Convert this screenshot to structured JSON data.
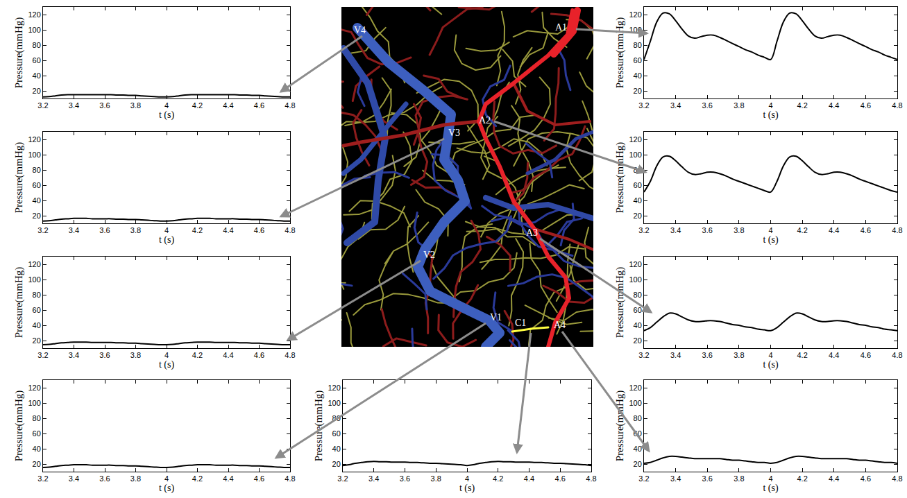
{
  "diagram": {
    "labels": [
      "V4",
      "V3",
      "V2",
      "V1",
      "C1",
      "A1",
      "A2",
      "A3",
      "A4"
    ]
  },
  "chart_data": [
    {
      "type": "line",
      "x_label": "t (s)",
      "y_label": "Pressure(mmHg)",
      "xlim": [
        3.2,
        4.8
      ],
      "ylim": [
        10,
        130
      ],
      "xticks": [
        3.2,
        3.4,
        3.6,
        3.8,
        4,
        4.2,
        4.4,
        4.6,
        4.8
      ],
      "yticks": [
        20,
        40,
        60,
        80,
        100,
        120
      ],
      "grid": false,
      "x": [
        3.2,
        3.24,
        3.28,
        3.32,
        3.36,
        3.4,
        3.44,
        3.48,
        3.52,
        3.56,
        3.6,
        3.64,
        3.68,
        3.72,
        3.76,
        3.8,
        3.84,
        3.88,
        3.92,
        3.96,
        4,
        4.04,
        4.08,
        4.12,
        4.16,
        4.2,
        4.24,
        4.28,
        4.32,
        4.36,
        4.4,
        4.44,
        4.48,
        4.52,
        4.56,
        4.6,
        4.64,
        4.68,
        4.72,
        4.76,
        4.8
      ],
      "series": [
        {
          "color": "#000000",
          "values": [
            12,
            12.5,
            13.5,
            14.5,
            15,
            15,
            15,
            15,
            15,
            15,
            15,
            15,
            14.5,
            14.5,
            14,
            14,
            13.5,
            13,
            12.5,
            12,
            12,
            12.5,
            13.5,
            14.5,
            15,
            15,
            15,
            15,
            15,
            15,
            15,
            15,
            14.5,
            14.5,
            14,
            14,
            13.5,
            13,
            12.5,
            12,
            12
          ]
        }
      ]
    },
    {
      "type": "line",
      "x_label": "t (s)",
      "y_label": "Pressure(mmHg)",
      "xlim": [
        3.2,
        4.8
      ],
      "ylim": [
        10,
        130
      ],
      "xticks": [
        3.2,
        3.4,
        3.6,
        3.8,
        4,
        4.2,
        4.4,
        4.6,
        4.8
      ],
      "yticks": [
        20,
        40,
        60,
        80,
        100,
        120
      ],
      "grid": false,
      "x": [
        3.2,
        3.24,
        3.28,
        3.32,
        3.36,
        3.4,
        3.44,
        3.48,
        3.52,
        3.56,
        3.6,
        3.64,
        3.68,
        3.72,
        3.76,
        3.8,
        3.84,
        3.88,
        3.92,
        3.96,
        4,
        4.04,
        4.08,
        4.12,
        4.16,
        4.2,
        4.24,
        4.28,
        4.32,
        4.36,
        4.4,
        4.44,
        4.48,
        4.52,
        4.56,
        4.6,
        4.64,
        4.68,
        4.72,
        4.76,
        4.8
      ],
      "series": [
        {
          "color": "#000000",
          "values": [
            13,
            13.5,
            14.5,
            15.5,
            16,
            16.5,
            16.5,
            16.5,
            16,
            16,
            16,
            16,
            15.5,
            15.5,
            15,
            15,
            14.5,
            14,
            13.5,
            13,
            13,
            13.5,
            14.5,
            15.5,
            16,
            16.5,
            16.5,
            16.5,
            16,
            16,
            16,
            16,
            15.5,
            15.5,
            15,
            15,
            14.5,
            14,
            13.5,
            13,
            13
          ]
        }
      ]
    },
    {
      "type": "line",
      "x_label": "t (s)",
      "y_label": "Pressure(mmHg)",
      "xlim": [
        3.2,
        4.8
      ],
      "ylim": [
        10,
        130
      ],
      "xticks": [
        3.2,
        3.4,
        3.6,
        3.8,
        4,
        4.2,
        4.4,
        4.6,
        4.8
      ],
      "yticks": [
        20,
        40,
        60,
        80,
        100,
        120
      ],
      "grid": false,
      "x": [
        3.2,
        3.24,
        3.28,
        3.32,
        3.36,
        3.4,
        3.44,
        3.48,
        3.52,
        3.56,
        3.6,
        3.64,
        3.68,
        3.72,
        3.76,
        3.8,
        3.84,
        3.88,
        3.92,
        3.96,
        4,
        4.04,
        4.08,
        4.12,
        4.16,
        4.2,
        4.24,
        4.28,
        4.32,
        4.36,
        4.4,
        4.44,
        4.48,
        4.52,
        4.56,
        4.6,
        4.64,
        4.68,
        4.72,
        4.76,
        4.8
      ],
      "series": [
        {
          "color": "#000000",
          "values": [
            14.5,
            15,
            16,
            17,
            17.5,
            18,
            18,
            18,
            17.5,
            17.5,
            17.5,
            17.5,
            17,
            17,
            16.5,
            16.5,
            16,
            15.5,
            15,
            14.5,
            14.5,
            15,
            16,
            17,
            17.5,
            18,
            18,
            18,
            17.5,
            17.5,
            17.5,
            17.5,
            17,
            17,
            16.5,
            16.5,
            16,
            15.5,
            15,
            14.5,
            14.5
          ]
        }
      ]
    },
    {
      "type": "line",
      "x_label": "t (s)",
      "y_label": "Pressure(mmHg)",
      "xlim": [
        3.2,
        4.8
      ],
      "ylim": [
        10,
        130
      ],
      "xticks": [
        3.2,
        3.4,
        3.6,
        3.8,
        4,
        4.2,
        4.4,
        4.6,
        4.8
      ],
      "yticks": [
        20,
        40,
        60,
        80,
        100,
        120
      ],
      "grid": false,
      "x": [
        3.2,
        3.24,
        3.28,
        3.32,
        3.36,
        3.4,
        3.44,
        3.48,
        3.52,
        3.56,
        3.6,
        3.64,
        3.68,
        3.72,
        3.76,
        3.8,
        3.84,
        3.88,
        3.92,
        3.96,
        4,
        4.04,
        4.08,
        4.12,
        4.16,
        4.2,
        4.24,
        4.28,
        4.32,
        4.36,
        4.4,
        4.44,
        4.48,
        4.52,
        4.56,
        4.6,
        4.64,
        4.68,
        4.72,
        4.76,
        4.8
      ],
      "series": [
        {
          "color": "#000000",
          "values": [
            15.5,
            16,
            17,
            18,
            18.5,
            19,
            19,
            19,
            18.5,
            18.5,
            18.5,
            18.5,
            18,
            18,
            17.5,
            17.5,
            17,
            16.5,
            16,
            15.5,
            15.5,
            16,
            17,
            18,
            18.5,
            19,
            19,
            19,
            18.5,
            18.5,
            18.5,
            18.5,
            18,
            18,
            17.5,
            17.5,
            17,
            16.5,
            16,
            15.5,
            15.5
          ]
        }
      ]
    },
    {
      "type": "line",
      "x_label": "t (s)",
      "y_label": "Pressure(mmHg)",
      "xlim": [
        3.2,
        4.8
      ],
      "ylim": [
        10,
        130
      ],
      "xticks": [
        3.2,
        3.4,
        3.6,
        3.8,
        4,
        4.2,
        4.4,
        4.6,
        4.8
      ],
      "yticks": [
        20,
        40,
        60,
        80,
        100,
        120
      ],
      "grid": false,
      "x": [
        3.2,
        3.24,
        3.28,
        3.32,
        3.36,
        3.4,
        3.44,
        3.48,
        3.52,
        3.56,
        3.6,
        3.64,
        3.68,
        3.72,
        3.76,
        3.8,
        3.84,
        3.88,
        3.92,
        3.96,
        4,
        4.04,
        4.08,
        4.12,
        4.16,
        4.2,
        4.24,
        4.28,
        4.32,
        4.36,
        4.4,
        4.44,
        4.48,
        4.52,
        4.56,
        4.6,
        4.64,
        4.68,
        4.72,
        4.76,
        4.8
      ],
      "series": [
        {
          "color": "#000000",
          "values": [
            18,
            19,
            21,
            22,
            23,
            23.5,
            23,
            23,
            22.5,
            22.5,
            22.5,
            22,
            22,
            21.5,
            21,
            21,
            20.5,
            20,
            19.5,
            19,
            18,
            19,
            21,
            22,
            23,
            23.5,
            23,
            23,
            22.5,
            22.5,
            22.5,
            22,
            22,
            21.5,
            21,
            21,
            20.5,
            20,
            19.5,
            19,
            18
          ]
        }
      ]
    },
    {
      "type": "line",
      "x_label": "t (s)",
      "y_label": "Pressure(mmHg)",
      "xlim": [
        3.2,
        4.8
      ],
      "ylim": [
        10,
        130
      ],
      "xticks": [
        3.2,
        3.4,
        3.6,
        3.8,
        4,
        4.2,
        4.4,
        4.6,
        4.8
      ],
      "yticks": [
        20,
        40,
        60,
        80,
        100,
        120
      ],
      "grid": false,
      "x": [
        3.2,
        3.24,
        3.28,
        3.32,
        3.36,
        3.4,
        3.44,
        3.48,
        3.52,
        3.56,
        3.6,
        3.64,
        3.68,
        3.72,
        3.76,
        3.8,
        3.84,
        3.88,
        3.92,
        3.96,
        4,
        4.04,
        4.08,
        4.12,
        4.16,
        4.2,
        4.24,
        4.28,
        4.32,
        4.36,
        4.4,
        4.44,
        4.48,
        4.52,
        4.56,
        4.6,
        4.64,
        4.68,
        4.72,
        4.76,
        4.8
      ],
      "series": [
        {
          "color": "#000000",
          "values": [
            61,
            85,
            110,
            122,
            121,
            112,
            101,
            92,
            89,
            91,
            93,
            93,
            90,
            86,
            82,
            78,
            74,
            71,
            67,
            64,
            61,
            85,
            110,
            122,
            121,
            112,
            101,
            92,
            89,
            91,
            93,
            93,
            90,
            86,
            82,
            78,
            74,
            71,
            67,
            64,
            61
          ]
        }
      ]
    },
    {
      "type": "line",
      "x_label": "t (s)",
      "y_label": "Pressure(mmHg)",
      "xlim": [
        3.2,
        4.8
      ],
      "ylim": [
        10,
        130
      ],
      "xticks": [
        3.2,
        3.4,
        3.6,
        3.8,
        4,
        4.2,
        4.4,
        4.6,
        4.8
      ],
      "yticks": [
        20,
        40,
        60,
        80,
        100,
        120
      ],
      "grid": false,
      "x": [
        3.2,
        3.24,
        3.28,
        3.32,
        3.36,
        3.4,
        3.44,
        3.48,
        3.52,
        3.56,
        3.6,
        3.64,
        3.68,
        3.72,
        3.76,
        3.8,
        3.84,
        3.88,
        3.92,
        3.96,
        4,
        4.04,
        4.08,
        4.12,
        4.16,
        4.2,
        4.24,
        4.28,
        4.32,
        4.36,
        4.4,
        4.44,
        4.48,
        4.52,
        4.56,
        4.6,
        4.64,
        4.68,
        4.72,
        4.76,
        4.8
      ],
      "series": [
        {
          "color": "#000000",
          "values": [
            51,
            65,
            85,
            97,
            98,
            92,
            84,
            77,
            74,
            75,
            77,
            77,
            75,
            72,
            68,
            65,
            62,
            59,
            56,
            53,
            51,
            65,
            85,
            97,
            98,
            92,
            84,
            77,
            74,
            75,
            77,
            77,
            75,
            72,
            68,
            65,
            62,
            59,
            56,
            53,
            51
          ]
        }
      ]
    },
    {
      "type": "line",
      "x_label": "t (s)",
      "y_label": "Pressure(mmHg)",
      "xlim": [
        3.2,
        4.8
      ],
      "ylim": [
        10,
        130
      ],
      "xticks": [
        3.2,
        3.4,
        3.6,
        3.8,
        4,
        4.2,
        4.4,
        4.6,
        4.8
      ],
      "yticks": [
        20,
        40,
        60,
        80,
        100,
        120
      ],
      "grid": false,
      "x": [
        3.2,
        3.24,
        3.28,
        3.32,
        3.36,
        3.4,
        3.44,
        3.48,
        3.52,
        3.56,
        3.6,
        3.64,
        3.68,
        3.72,
        3.76,
        3.8,
        3.84,
        3.88,
        3.92,
        3.96,
        4,
        4.04,
        4.08,
        4.12,
        4.16,
        4.2,
        4.24,
        4.28,
        4.32,
        4.36,
        4.4,
        4.44,
        4.48,
        4.52,
        4.56,
        4.6,
        4.64,
        4.68,
        4.72,
        4.76,
        4.8
      ],
      "series": [
        {
          "color": "#000000",
          "values": [
            33,
            37,
            44,
            51,
            56,
            55,
            51,
            47,
            45,
            45,
            46,
            46,
            45,
            43,
            41,
            40,
            38,
            37,
            35,
            34,
            33,
            37,
            44,
            51,
            56,
            55,
            51,
            47,
            45,
            45,
            46,
            46,
            45,
            43,
            41,
            40,
            38,
            37,
            35,
            34,
            33
          ]
        }
      ]
    },
    {
      "type": "line",
      "x_label": "t (s)",
      "y_label": "Pressure(mmHg)",
      "xlim": [
        3.2,
        4.8
      ],
      "ylim": [
        10,
        130
      ],
      "xticks": [
        3.2,
        3.4,
        3.6,
        3.8,
        4,
        4.2,
        4.4,
        4.6,
        4.8
      ],
      "yticks": [
        20,
        40,
        60,
        80,
        100,
        120
      ],
      "grid": false,
      "x": [
        3.2,
        3.24,
        3.28,
        3.32,
        3.36,
        3.4,
        3.44,
        3.48,
        3.52,
        3.56,
        3.6,
        3.64,
        3.68,
        3.72,
        3.76,
        3.8,
        3.84,
        3.88,
        3.92,
        3.96,
        4,
        4.04,
        4.08,
        4.12,
        4.16,
        4.2,
        4.24,
        4.28,
        4.32,
        4.36,
        4.4,
        4.44,
        4.48,
        4.52,
        4.56,
        4.6,
        4.64,
        4.68,
        4.72,
        4.76,
        4.8
      ],
      "series": [
        {
          "color": "#000000",
          "values": [
            21,
            22,
            25,
            28,
            30,
            30,
            29,
            28,
            27,
            27,
            27,
            27,
            27,
            26,
            25,
            25,
            24,
            23,
            22,
            22,
            21,
            22,
            25,
            28,
            30,
            30,
            29,
            28,
            27,
            27,
            27,
            27,
            27,
            26,
            25,
            25,
            24,
            23,
            22,
            22,
            21
          ]
        }
      ]
    }
  ]
}
